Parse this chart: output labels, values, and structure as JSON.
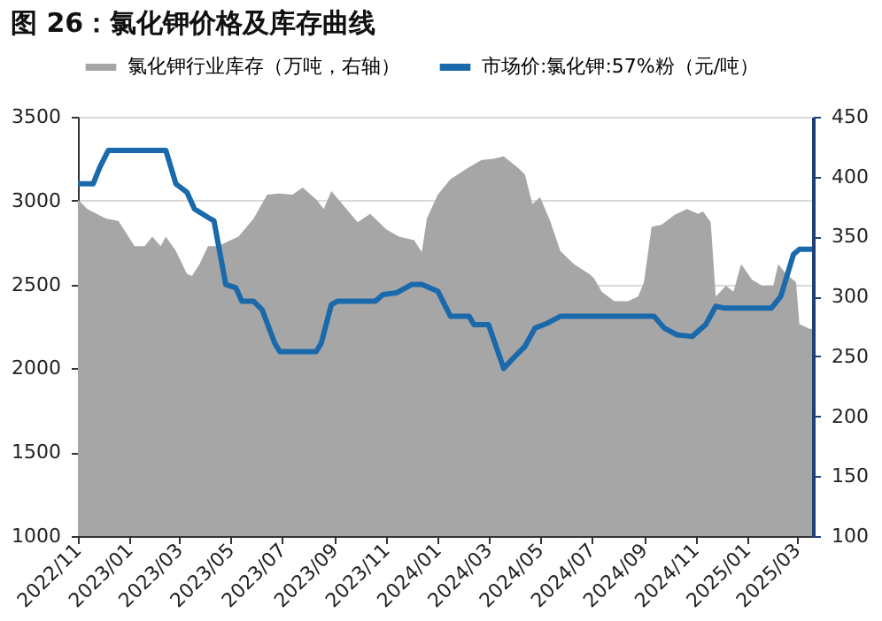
{
  "chart_data": {
    "type": "line",
    "title": "图 26：氯化钾价格及库存曲线",
    "legend": "top",
    "grid": "y",
    "xlim": [
      "2022-11-01",
      "2025-03-20"
    ],
    "xticks": [
      {
        "value": "2022-11-01",
        "label": "2022/11"
      },
      {
        "value": "2023-01-01",
        "label": "2023/01"
      },
      {
        "value": "2023-03-01",
        "label": "2023/03"
      },
      {
        "value": "2023-05-01",
        "label": "2023/05"
      },
      {
        "value": "2023-07-01",
        "label": "2023/07"
      },
      {
        "value": "2023-09-01",
        "label": "2023/09"
      },
      {
        "value": "2023-11-01",
        "label": "2023/11"
      },
      {
        "value": "2024-01-01",
        "label": "2024/01"
      },
      {
        "value": "2024-03-01",
        "label": "2024/03"
      },
      {
        "value": "2024-05-01",
        "label": "2024/05"
      },
      {
        "value": "2024-07-01",
        "label": "2024/07"
      },
      {
        "value": "2024-09-01",
        "label": "2024/09"
      },
      {
        "value": "2024-11-01",
        "label": "2024/11"
      },
      {
        "value": "2025-01-01",
        "label": "2025/01"
      },
      {
        "value": "2025-03-01",
        "label": "2025/03"
      }
    ],
    "ylim": [
      1000,
      3500
    ],
    "yticks": [
      1000,
      1500,
      2000,
      2500,
      3000,
      3500
    ],
    "y2lim": [
      100,
      450
    ],
    "y2ticks": [
      100,
      150,
      200,
      250,
      300,
      350,
      400,
      450
    ],
    "series": [
      {
        "name": "氯化钾行业库存（万吨，右轴）",
        "type": "area",
        "axis": "y2",
        "color": "#a6a6a6",
        "x": [
          "2022-11-01",
          "2022-11-12",
          "2022-12-04",
          "2022-12-19",
          "2023-01-07",
          "2023-01-19",
          "2023-01-28",
          "2023-02-07",
          "2023-02-13",
          "2023-02-25",
          "2023-03-10",
          "2023-03-16",
          "2023-03-25",
          "2023-04-04",
          "2023-04-16",
          "2023-04-28",
          "2023-05-10",
          "2023-05-28",
          "2023-06-13",
          "2023-06-28",
          "2023-07-13",
          "2023-07-25",
          "2023-08-10",
          "2023-08-19",
          "2023-08-28",
          "2023-09-10",
          "2023-09-28",
          "2023-10-13",
          "2023-11-01",
          "2023-11-16",
          "2023-12-04",
          "2023-12-13",
          "2023-12-19",
          "2024-01-01",
          "2024-01-16",
          "2024-02-07",
          "2024-02-22",
          "2024-03-07",
          "2024-03-19",
          "2024-04-04",
          "2024-04-13",
          "2024-04-22",
          "2024-05-01",
          "2024-05-13",
          "2024-05-25",
          "2024-06-10",
          "2024-06-28",
          "2024-07-04",
          "2024-07-13",
          "2024-07-28",
          "2024-08-13",
          "2024-08-25",
          "2024-09-01",
          "2024-09-10",
          "2024-09-22",
          "2024-10-07",
          "2024-10-22",
          "2024-11-04",
          "2024-11-10",
          "2024-11-19",
          "2024-11-25",
          "2024-12-07",
          "2024-12-16",
          "2024-12-25",
          "2025-01-07",
          "2025-01-19",
          "2025-02-01",
          "2025-02-07",
          "2025-02-16",
          "2025-02-28",
          "2025-03-04",
          "2025-03-16",
          "2025-03-19"
        ],
        "values": [
          381,
          373,
          365,
          363,
          342,
          342,
          350,
          342,
          350,
          338,
          319,
          317,
          327,
          342,
          342,
          346,
          350,
          365,
          385,
          386,
          385,
          391,
          381,
          373,
          388,
          377,
          362,
          369,
          356,
          350,
          347,
          337,
          365,
          385,
          398,
          408,
          414,
          415,
          417,
          408,
          402,
          377,
          383,
          363,
          338,
          327,
          319,
          315,
          304,
          296,
          296,
          300,
          312,
          358,
          360,
          368,
          373,
          369,
          371,
          362,
          300,
          309,
          304,
          327,
          314,
          309,
          309,
          327,
          319,
          312,
          277,
          273,
          273
        ]
      },
      {
        "name": "市场价:氯化钾:57%粉（元/吨）",
        "color": "#1a6aab",
        "x": [
          "2022-11-01",
          "2022-11-19",
          "2022-11-27",
          "2022-12-07",
          "2023-02-13",
          "2023-02-25",
          "2023-03-10",
          "2023-03-19",
          "2023-04-04",
          "2023-04-11",
          "2023-04-25",
          "2023-05-07",
          "2023-05-14",
          "2023-05-28",
          "2023-06-07",
          "2023-06-22",
          "2023-06-28",
          "2023-08-10",
          "2023-08-16",
          "2023-08-28",
          "2023-09-04",
          "2023-10-19",
          "2023-10-28",
          "2023-11-13",
          "2023-12-01",
          "2023-12-13",
          "2024-01-01",
          "2024-01-16",
          "2024-02-07",
          "2024-02-13",
          "2024-03-01",
          "2024-03-10",
          "2024-03-19",
          "2024-04-01",
          "2024-04-13",
          "2024-04-25",
          "2024-05-10",
          "2024-05-25",
          "2024-09-13",
          "2024-09-25",
          "2024-10-10",
          "2024-10-28",
          "2024-11-13",
          "2024-11-25",
          "2024-12-04",
          "2025-01-30",
          "2025-02-10",
          "2025-02-25",
          "2025-03-04",
          "2025-03-19"
        ],
        "values": [
          3100,
          3100,
          3200,
          3300,
          3300,
          3100,
          3050,
          2950,
          2900,
          2880,
          2500,
          2480,
          2400,
          2400,
          2350,
          2150,
          2100,
          2100,
          2150,
          2380,
          2400,
          2400,
          2440,
          2450,
          2500,
          2500,
          2460,
          2310,
          2310,
          2260,
          2260,
          2130,
          2000,
          2070,
          2130,
          2240,
          2270,
          2310,
          2310,
          2240,
          2200,
          2190,
          2260,
          2370,
          2360,
          2360,
          2430,
          2680,
          2710,
          2710
        ]
      }
    ]
  }
}
